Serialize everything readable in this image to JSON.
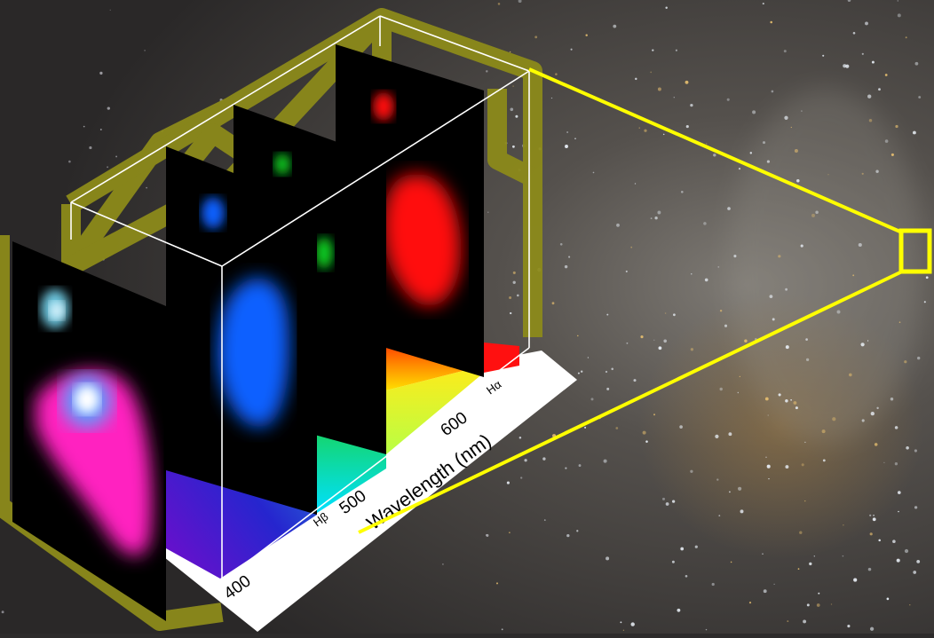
{
  "diagram": {
    "axis_label": "Wavelength (nm)",
    "ticks": [
      "400",
      "500",
      "600"
    ],
    "line_labels": {
      "h_beta": "Hβ",
      "h_alpha": "Hα"
    },
    "slices": [
      {
        "name": "composite",
        "color": "#ff33cc"
      },
      {
        "name": "blue",
        "color": "#1060ff"
      },
      {
        "name": "green",
        "color": "#10d020"
      },
      {
        "name": "red",
        "color": "#ff1010"
      }
    ],
    "colors": {
      "frame_glow": "#8c8a1a",
      "zoom_lines": "#ffff00",
      "cube_edges": "#ffffff",
      "sky": "#2e2c2c"
    }
  }
}
